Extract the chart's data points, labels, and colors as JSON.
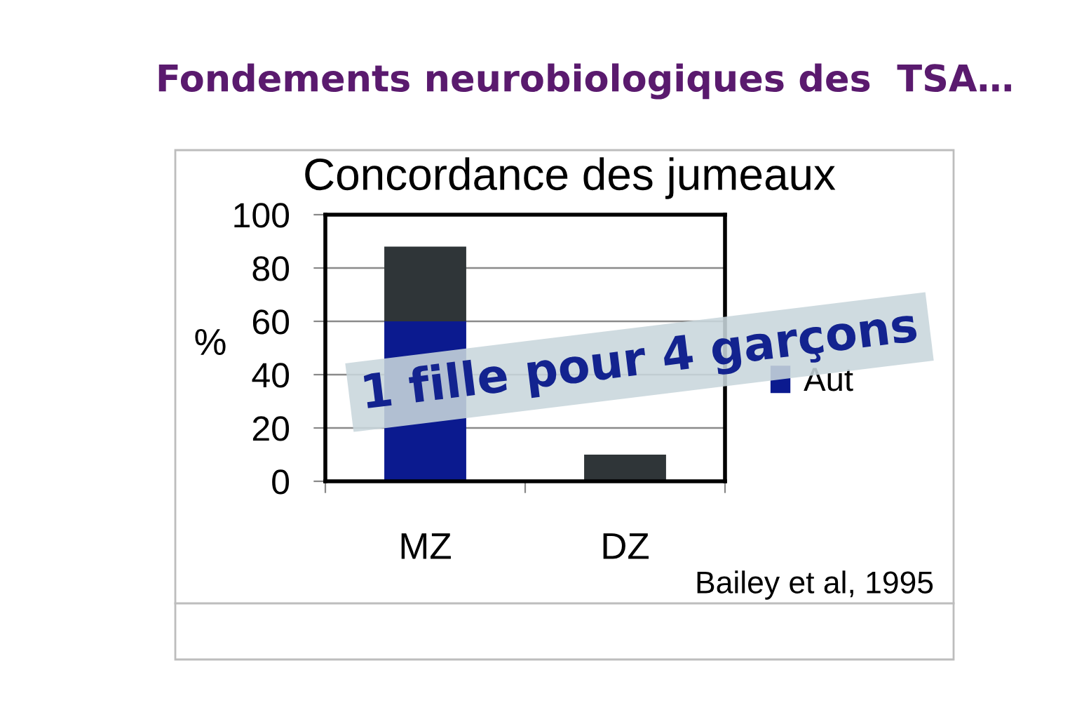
{
  "chart_data": {
    "type": "bar",
    "title": "Fondements neurobiologiques des  TSA…",
    "subtitle": "Concordance des jumeaux",
    "ylabel": "%",
    "categories": [
      "MZ",
      "DZ"
    ],
    "stacked": true,
    "series": [
      {
        "name": "Aut",
        "color": "#0b1a8f",
        "values": [
          60,
          0
        ]
      },
      {
        "color": "#2f3538",
        "values": [
          28,
          10
        ]
      }
    ],
    "ylim": [
      0,
      100
    ],
    "yticks": [
      0,
      20,
      40,
      60,
      80,
      100
    ],
    "grid": "y",
    "legend": "right",
    "annotations": [
      "1 fille pour 4 garçons",
      "Bailey et al, 1995"
    ]
  }
}
